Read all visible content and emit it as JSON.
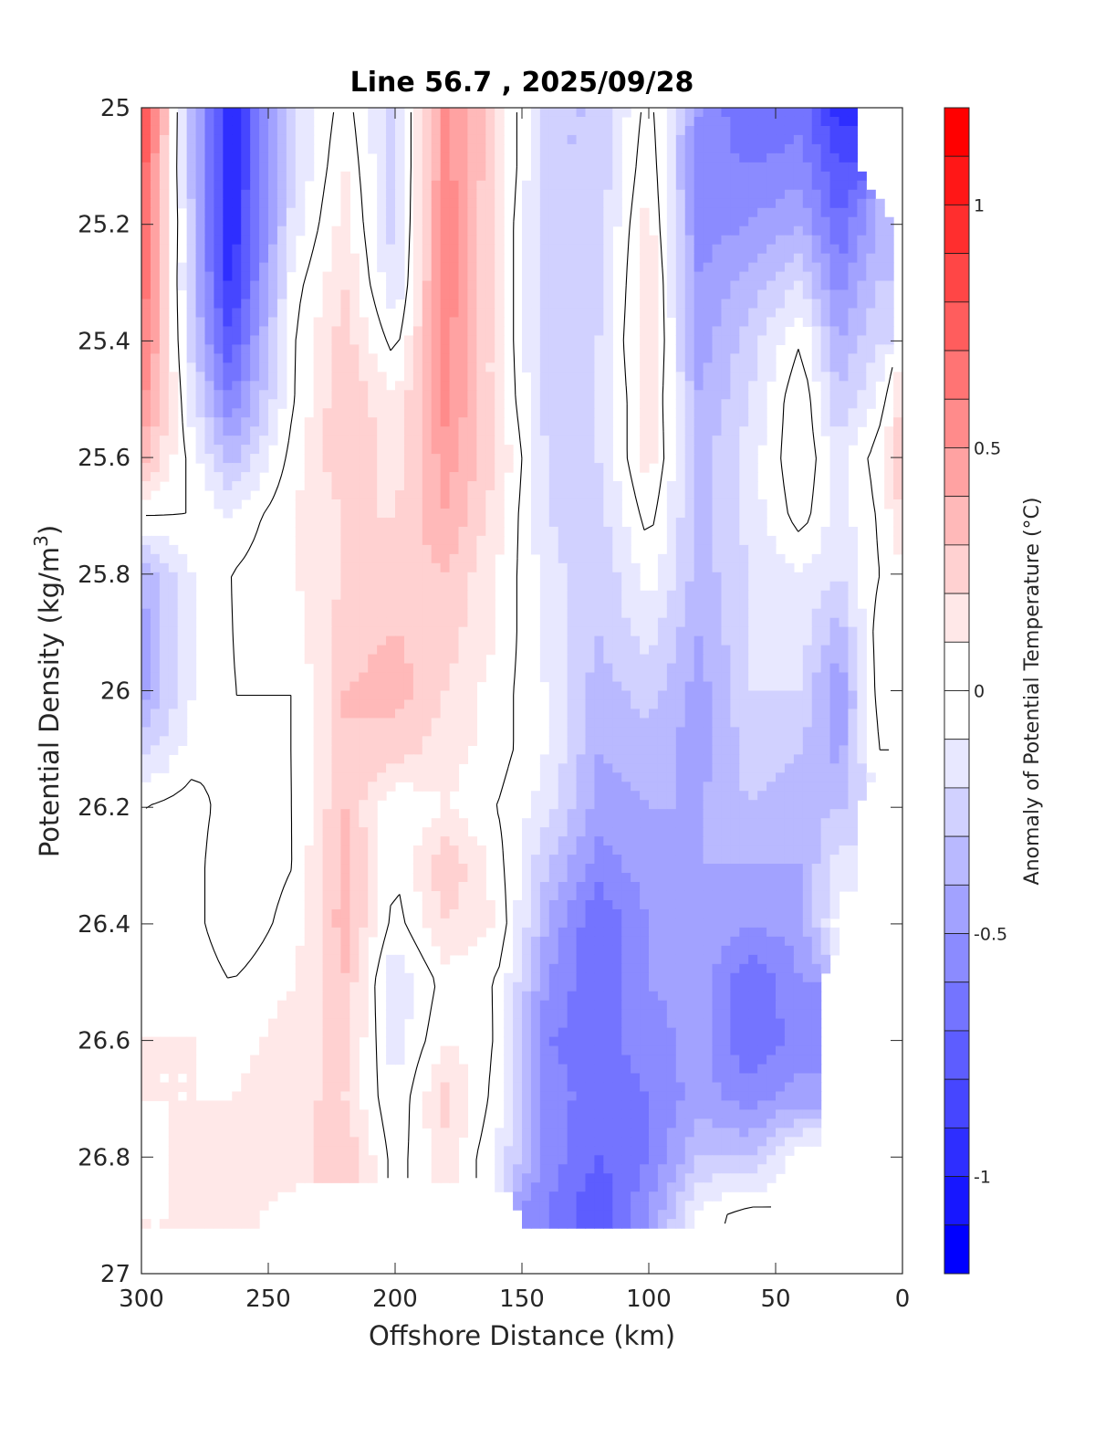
{
  "chart_data": {
    "type": "heatmap",
    "subtype": "filled-contour",
    "title": "Line 56.7 , 2025/09/28",
    "xlabel": "Offshore Distance (km)",
    "ylabel": "Potential Density (kg/m³)",
    "ylabel_base": "Potential Density (kg/m",
    "ylabel_sup": "3",
    "ylabel_tail": ")",
    "xlim": [
      300,
      0
    ],
    "ylim": [
      25,
      27
    ],
    "x_reversed": true,
    "y_reversed": true,
    "xticks": [
      300,
      250,
      200,
      150,
      100,
      50,
      0
    ],
    "xtick_labels": [
      "300",
      "250",
      "200",
      "150",
      "100",
      "50",
      "0"
    ],
    "yticks": [
      25,
      25.2,
      25.4,
      25.6,
      25.8,
      26,
      26.2,
      26.4,
      26.6,
      26.8,
      27
    ],
    "ytick_labels": [
      "25",
      "25.2",
      "25.4",
      "25.6",
      "25.8",
      "26",
      "26.2",
      "26.4",
      "26.6",
      "26.8",
      "27"
    ],
    "colorbar": {
      "label": "Anomaly of Potential Temperature (°C)",
      "range": [
        -1.2,
        1.2
      ],
      "step": 0.1,
      "ticks": [
        1,
        0.5,
        0,
        -0.5,
        -1
      ],
      "tick_labels": [
        "1",
        "0.5",
        "0",
        "-0.5",
        "-1"
      ],
      "colormap": "blue-white-red",
      "neg_color": "#0000ff",
      "pos_color": "#ff0000",
      "zero_color": "#ffffff"
    },
    "zero_contour": true,
    "grid_x": [
      300,
      280,
      265,
      240,
      220,
      200,
      180,
      160,
      140,
      120,
      100,
      80,
      60,
      40,
      25,
      10,
      0
    ],
    "grid_y": [
      25.0,
      25.1,
      25.2,
      25.3,
      25.4,
      25.5,
      25.6,
      25.7,
      25.8,
      25.9,
      26.0,
      26.1,
      26.2,
      26.3,
      26.4,
      26.5,
      26.6,
      26.7,
      26.8,
      26.9
    ],
    "values": [
      [
        0.85,
        -0.35,
        -1.0,
        -0.2,
        0.05,
        -0.25,
        0.55,
        0.2,
        -0.3,
        -0.3,
        0.05,
        -0.5,
        -0.7,
        -0.65,
        -0.95,
        null,
        null
      ],
      [
        0.8,
        -0.35,
        -1.0,
        -0.2,
        0.1,
        -0.25,
        0.55,
        0.2,
        -0.3,
        -0.3,
        0.1,
        -0.55,
        -0.6,
        -0.55,
        -0.8,
        null,
        null
      ],
      [
        0.75,
        -0.3,
        -1.0,
        -0.15,
        0.15,
        -0.25,
        0.6,
        0.15,
        -0.3,
        -0.25,
        0.15,
        -0.55,
        -0.5,
        -0.4,
        -0.7,
        -0.4,
        null
      ],
      [
        0.7,
        -0.3,
        -0.95,
        -0.05,
        0.2,
        -0.2,
        0.6,
        0.15,
        -0.3,
        -0.25,
        0.2,
        -0.5,
        -0.35,
        -0.2,
        -0.55,
        -0.3,
        null
      ],
      [
        0.65,
        -0.25,
        -0.8,
        0.0,
        0.25,
        -0.05,
        0.55,
        0.15,
        -0.3,
        -0.2,
        0.2,
        -0.45,
        -0.25,
        0.0,
        -0.4,
        -0.2,
        null
      ],
      [
        0.55,
        -0.15,
        -0.6,
        0.0,
        0.3,
        0.1,
        0.55,
        0.15,
        -0.25,
        -0.2,
        0.15,
        -0.4,
        -0.2,
        0.1,
        -0.3,
        -0.1,
        0.2
      ],
      [
        0.35,
        -0.05,
        -0.35,
        0.05,
        0.3,
        0.15,
        0.45,
        0.2,
        -0.2,
        -0.2,
        0.15,
        -0.35,
        -0.15,
        0.1,
        -0.15,
        0.05,
        0.35
      ],
      [
        0.0,
        0.0,
        -0.1,
        0.1,
        0.2,
        0.2,
        0.4,
        0.15,
        -0.2,
        -0.25,
        0.05,
        -0.35,
        -0.15,
        0.05,
        -0.15,
        0.0,
        0.2
      ],
      [
        -0.4,
        -0.1,
        0.0,
        0.1,
        0.2,
        0.25,
        0.3,
        0.1,
        -0.15,
        -0.3,
        -0.05,
        -0.35,
        -0.2,
        -0.1,
        -0.2,
        0.0,
        null
      ],
      [
        -0.45,
        -0.1,
        0.0,
        0.05,
        0.25,
        0.3,
        0.25,
        0.1,
        -0.15,
        -0.3,
        -0.15,
        -0.4,
        -0.2,
        -0.15,
        -0.35,
        0.05,
        null
      ],
      [
        -0.45,
        -0.1,
        0.0,
        0.0,
        0.3,
        0.35,
        0.2,
        0.05,
        -0.1,
        -0.35,
        -0.25,
        -0.45,
        -0.2,
        -0.2,
        -0.5,
        0.05,
        null
      ],
      [
        -0.25,
        -0.05,
        0.0,
        0.0,
        0.3,
        0.25,
        0.15,
        0.05,
        -0.1,
        -0.4,
        -0.35,
        -0.45,
        -0.25,
        -0.3,
        -0.45,
        0.0,
        null
      ],
      [
        0.0,
        0.05,
        -0.05,
        0.0,
        0.3,
        0.0,
        0.1,
        0.0,
        -0.15,
        -0.45,
        -0.4,
        -0.4,
        -0.3,
        -0.35,
        -0.3,
        null,
        null
      ],
      [
        0.05,
        0.05,
        -0.1,
        0.0,
        0.35,
        0.0,
        0.3,
        0.05,
        -0.3,
        -0.55,
        -0.45,
        -0.4,
        -0.4,
        -0.4,
        -0.15,
        null,
        null
      ],
      [
        0.0,
        0.05,
        -0.1,
        0.05,
        0.35,
        -0.05,
        0.2,
        0.1,
        -0.4,
        -0.7,
        -0.5,
        -0.4,
        -0.5,
        -0.45,
        -0.05,
        null,
        null
      ],
      [
        0.05,
        0.1,
        0.0,
        0.1,
        0.3,
        -0.2,
        0.05,
        0.0,
        -0.5,
        -0.7,
        -0.5,
        -0.45,
        -0.7,
        -0.5,
        null,
        null,
        null
      ],
      [
        0.1,
        0.1,
        0.05,
        0.15,
        0.25,
        -0.15,
        0.1,
        0.0,
        -0.6,
        -0.65,
        -0.55,
        -0.45,
        -0.7,
        -0.55,
        null,
        null,
        null
      ],
      [
        0.1,
        0.1,
        0.1,
        0.2,
        0.2,
        -0.1,
        0.25,
        -0.05,
        -0.55,
        -0.65,
        -0.6,
        -0.45,
        -0.55,
        -0.45,
        null,
        null,
        null
      ],
      [
        0.05,
        0.15,
        0.15,
        0.15,
        0.3,
        -0.05,
        0.15,
        -0.1,
        -0.55,
        -0.7,
        -0.6,
        -0.3,
        -0.3,
        0.0,
        null,
        null,
        null
      ],
      [
        0.1,
        0.1,
        0.1,
        null,
        null,
        null,
        null,
        null,
        -0.6,
        -0.8,
        -0.5,
        -0.05,
        0.05,
        null,
        null,
        null,
        null
      ]
    ]
  }
}
